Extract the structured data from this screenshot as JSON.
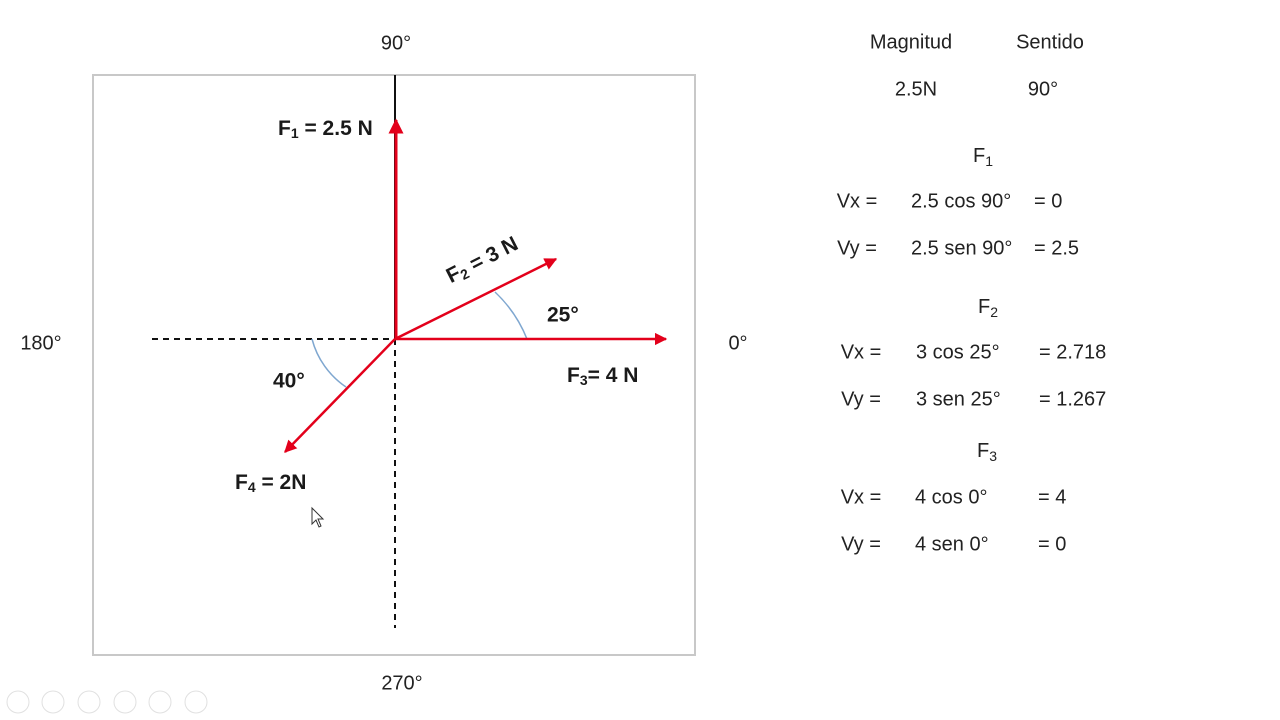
{
  "diagram": {
    "angle_labels": {
      "top": "90°",
      "left": "180°",
      "right": "0°",
      "bottom": "270°"
    },
    "forces": [
      {
        "symbol": "F",
        "index": "1",
        "text": " = 2.5 N"
      },
      {
        "symbol": "F",
        "index": "2",
        "text": " = 3 N"
      },
      {
        "symbol": "F",
        "index": "3",
        "text": "= 4 N"
      },
      {
        "symbol": "F",
        "index": "4",
        "text": " = 2N"
      }
    ],
    "arc_labels": [
      "25°",
      "40°"
    ]
  },
  "table": {
    "headers": [
      "Magnitud",
      "Sentido"
    ],
    "row": [
      "2.5N",
      "90°"
    ],
    "components": [
      {
        "symbol": "F",
        "index": "1",
        "rows": [
          [
            "Vx =",
            "2.5 cos 90°",
            "= 0"
          ],
          [
            "Vy =",
            "2.5 sen 90°",
            "= 2.5"
          ]
        ]
      },
      {
        "symbol": "F",
        "index": "2",
        "rows": [
          [
            "Vx =",
            "3 cos 25°",
            "= 2.718"
          ],
          [
            "Vy =",
            "3 sen 25°",
            "= 1.267"
          ]
        ]
      },
      {
        "symbol": "F",
        "index": "3",
        "rows": [
          [
            "Vx =",
            "4 cos 0°",
            "= 4"
          ],
          [
            "Vy =",
            "4 sen 0°",
            "= 0"
          ]
        ]
      }
    ]
  }
}
